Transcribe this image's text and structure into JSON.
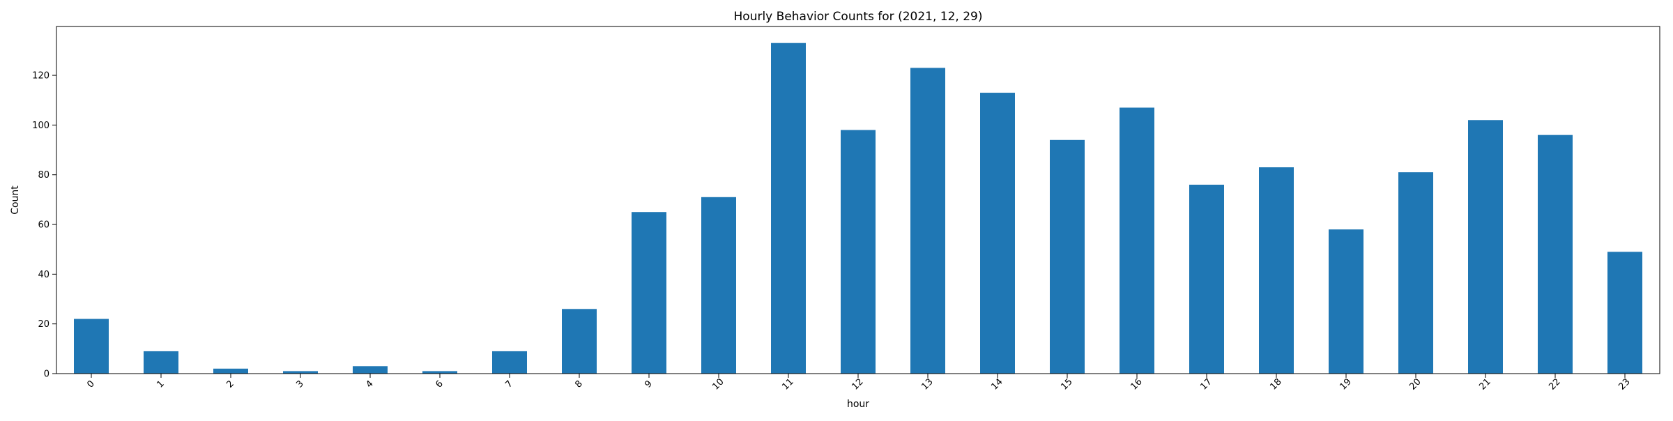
{
  "chart_data": {
    "type": "bar",
    "title": "Hourly Behavior Counts for (2021, 12, 29)",
    "xlabel": "hour",
    "ylabel": "Count",
    "categories": [
      "0",
      "1",
      "2",
      "3",
      "4",
      "6",
      "7",
      "8",
      "9",
      "10",
      "11",
      "12",
      "13",
      "14",
      "15",
      "16",
      "17",
      "18",
      "19",
      "20",
      "21",
      "22",
      "23"
    ],
    "values": [
      22,
      9,
      2,
      1,
      3,
      1,
      9,
      26,
      65,
      71,
      133,
      98,
      123,
      113,
      94,
      107,
      76,
      83,
      58,
      81,
      102,
      96,
      49
    ],
    "ylim": [
      0,
      139.65
    ],
    "yticks": [
      0,
      20,
      40,
      60,
      80,
      100,
      120
    ],
    "bar_color": "#1f77b4",
    "grid": false,
    "legend": "none"
  }
}
